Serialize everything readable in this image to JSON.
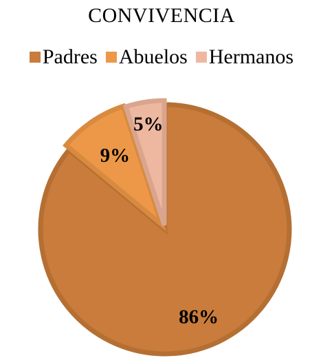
{
  "chart_data": {
    "type": "pie",
    "title": "CONVIVENCIA",
    "categories": [
      "Padres",
      "Abuelos",
      "Hermanos"
    ],
    "values": [
      86,
      9,
      5
    ],
    "labels": [
      "86%",
      "9%",
      "5%"
    ],
    "colors": [
      "#C97C3B",
      "#ED9848",
      "#EEB8A0"
    ],
    "border_colors": [
      "#B56F33",
      "#D88A40",
      "#D9A58E"
    ],
    "legend_position": "top",
    "start": "12 o'clock, clockwise",
    "exploded": true
  }
}
